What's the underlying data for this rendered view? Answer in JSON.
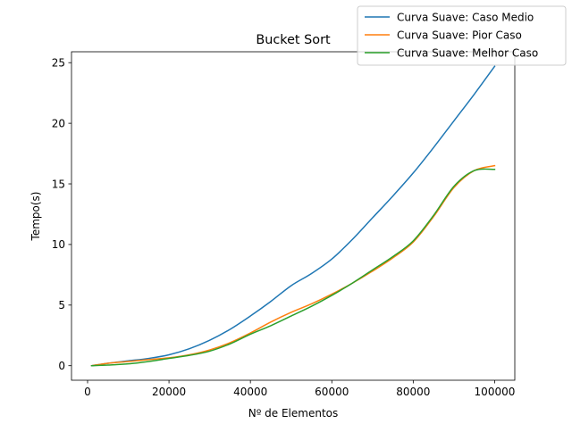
{
  "chart_data": {
    "type": "line",
    "title": "Bucket Sort",
    "xlabel": "Nº de Elementos",
    "ylabel": "Tempo(s)",
    "xlim": [
      -3950,
      104950
    ],
    "ylim": [
      -1.2,
      25.9
    ],
    "xticks": [
      0,
      20000,
      40000,
      60000,
      80000,
      100000
    ],
    "xtick_labels": [
      "0",
      "20000",
      "40000",
      "60000",
      "80000",
      "100000"
    ],
    "yticks": [
      0,
      5,
      10,
      15,
      20,
      25
    ],
    "ytick_labels": [
      "0",
      "5",
      "10",
      "15",
      "20",
      "25"
    ],
    "grid": false,
    "legend_position": "top-right",
    "x": [
      1000,
      5000,
      10000,
      15000,
      20000,
      25000,
      30000,
      35000,
      40000,
      45000,
      50000,
      55000,
      60000,
      65000,
      70000,
      75000,
      80000,
      85000,
      90000,
      95000,
      100000
    ],
    "series": [
      {
        "name": "Curva Suave: Caso Medio",
        "color": "#1f77b4",
        "values": [
          0.0,
          0.2,
          0.4,
          0.6,
          0.9,
          1.4,
          2.1,
          3.0,
          4.1,
          5.3,
          6.6,
          7.6,
          8.8,
          10.4,
          12.2,
          14.0,
          15.9,
          18.0,
          20.2,
          22.4,
          24.7
        ]
      },
      {
        "name": "Curva Suave: Pior Caso",
        "color": "#ff7f0e",
        "values": [
          0.0,
          0.2,
          0.35,
          0.5,
          0.65,
          0.9,
          1.3,
          1.9,
          2.7,
          3.6,
          4.4,
          5.1,
          5.9,
          6.8,
          7.8,
          8.9,
          10.2,
          12.3,
          14.7,
          16.1,
          16.5
        ]
      },
      {
        "name": "Curva Suave: Melhor Caso",
        "color": "#2ca02c",
        "values": [
          0.0,
          0.05,
          0.15,
          0.35,
          0.6,
          0.85,
          1.2,
          1.8,
          2.6,
          3.3,
          4.1,
          4.9,
          5.8,
          6.8,
          7.9,
          9.0,
          10.3,
          12.4,
          14.8,
          16.1,
          16.2
        ]
      }
    ]
  }
}
